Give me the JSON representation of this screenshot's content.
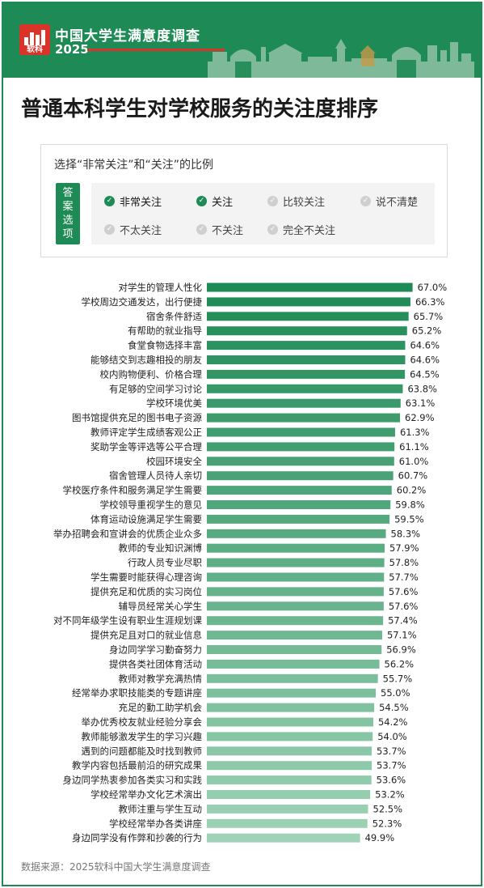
{
  "header": {
    "logo_text": "软科",
    "brand_title": "中国大学生满意度调查",
    "year": "2025"
  },
  "page_title": "普通本科学生对学校服务的关注度排序",
  "legend": {
    "caption": "选择“非常关注”和“关注”的比例",
    "answer_label": [
      "答",
      "案",
      "选",
      "项"
    ],
    "options": [
      {
        "label": "非常关注",
        "selected": true
      },
      {
        "label": "关注",
        "selected": true
      },
      {
        "label": "比较关注",
        "selected": false
      },
      {
        "label": "说不清楚",
        "selected": false
      },
      {
        "label": "不太关注",
        "selected": false
      },
      {
        "label": "不关注",
        "selected": false
      },
      {
        "label": "完全不关注",
        "selected": false
      }
    ]
  },
  "colors": {
    "brand_green": "#1e8a55",
    "brand_red": "#d9332a",
    "bar_dark": "#1e8a55",
    "bar_light": "#9fd3b7"
  },
  "chart_data": {
    "type": "bar",
    "orientation": "horizontal",
    "unit": "%",
    "xlim": [
      0,
      100
    ],
    "categories": [
      "对学生的管理人性化",
      "学校周边交通发达，出行便捷",
      "宿舍条件舒适",
      "有帮助的就业指导",
      "食堂食物选择丰富",
      "能够结交到志趣相投的朋友",
      "校内购物便利、价格合理",
      "有足够的空间学习讨论",
      "学校环境优美",
      "图书馆提供充足的图书电子资源",
      "教师评定学生成绩客观公正",
      "奖助学金等评选等公平合理",
      "校园环境安全",
      "宿舍管理人员待人亲切",
      "学校医疗条件和服务满足学生需要",
      "学校领导重视学生的意见",
      "体育运动设施满足学生需要",
      "举办招聘会和宣讲会的优质企业众多",
      "教师的专业知识渊博",
      "行政人员专业尽职",
      "学生需要时能获得心理咨询",
      "提供充足和优质的实习岗位",
      "辅导员经常关心学生",
      "对不同年级学生设有职业生涯规划课",
      "提供充足且对口的就业信息",
      "身边同学学习勤奋努力",
      "提供各类社团体育活动",
      "教师对教学充满热情",
      "经常举办求职技能类的专题讲座",
      "充足的勤工助学机会",
      "举办优秀校友就业经验分享会",
      "教师能够激发学生的学习兴趣",
      "遇到的问题都能及时找到教师",
      "教学内容包括最前沿的研究成果",
      "身边同学热衷参加各类实习和实践",
      "学校经常举办文化艺术演出",
      "教师注重与学生互动",
      "学校经常举办各类讲座",
      "身边同学没有作弊和抄袭的行为"
    ],
    "values": [
      67.0,
      66.3,
      65.7,
      65.2,
      64.6,
      64.6,
      64.5,
      63.8,
      63.1,
      62.9,
      61.3,
      61.1,
      61.0,
      60.7,
      60.2,
      59.8,
      59.5,
      58.3,
      57.9,
      57.8,
      57.7,
      57.6,
      57.6,
      57.4,
      57.1,
      56.9,
      56.2,
      55.7,
      55.0,
      54.5,
      54.2,
      54.0,
      53.7,
      53.7,
      53.6,
      53.2,
      52.5,
      52.3,
      49.9
    ],
    "value_labels": [
      "67.0%",
      "66.3%",
      "65.7%",
      "65.2%",
      "64.6%",
      "64.6%",
      "64.5%",
      "63.8%",
      "63.1%",
      "62.9%",
      "61.3%",
      "61.1%",
      "61.0%",
      "60.7%",
      "60.2%",
      "59.8%",
      "59.5%",
      "58.3%",
      "57.9%",
      "57.8%",
      "57.7%",
      "57.6%",
      "57.6%",
      "57.4%",
      "57.1%",
      "56.9%",
      "56.2%",
      "55.7%",
      "55.0%",
      "54.5%",
      "54.2%",
      "54.0%",
      "53.7%",
      "53.7%",
      "53.6%",
      "53.2%",
      "52.5%",
      "52.3%",
      "49.9%"
    ],
    "grid": false,
    "legend": "none"
  },
  "footer": {
    "source": "数据来源：2025软科中国大学生满意度调查"
  }
}
